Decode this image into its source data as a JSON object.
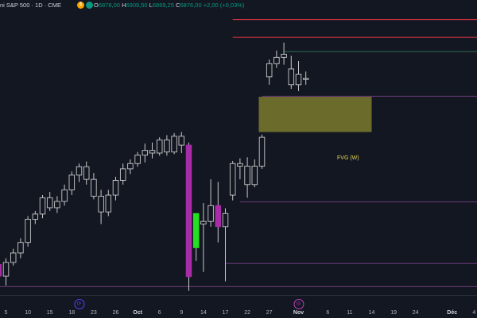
{
  "header": {
    "symbol_title": "ni S&P 500 · 1D · CME",
    "badge_currency": "$",
    "badge_delay": "D",
    "ohlc_open_label": "O",
    "ohlc_open": "6878,00",
    "ohlc_high_label": "H",
    "ohlc_high": "6909,50",
    "ohlc_low_label": "L",
    "ohlc_low": "6869,25",
    "ohlc_close_label": "C",
    "ohlc_close": "6876,00",
    "ohlc_change": "+2,00 (+0,03%)"
  },
  "annotations": {
    "fvg_label": "FVG (W)"
  },
  "events": [
    {
      "icon": "calendar-event-icon",
      "glyph": "⟳",
      "date": "Sep 19"
    },
    {
      "icon": "earnings-event-icon",
      "glyph": "⊙",
      "date": "Oct 31"
    }
  ],
  "colors": {
    "background": "#131722",
    "candle_outline": "#c8c8c8",
    "highlight_bear": "#a82ca8",
    "highlight_bull": "#22e022",
    "fvg_fill": "#8a8a30",
    "resistance_line": "#f23645",
    "level_line": "#6a3a78"
  },
  "chart_data": {
    "type": "candlestick",
    "instrument": "ni S&P 500",
    "timeframe": "1D",
    "exchange": "CME",
    "x_ticks": [
      {
        "label": "5",
        "date": "Sep 5"
      },
      {
        "label": "10",
        "date": "Sep 10"
      },
      {
        "label": "15",
        "date": "Sep 15"
      },
      {
        "label": "18",
        "date": "Sep 18"
      },
      {
        "label": "23",
        "date": "Sep 23"
      },
      {
        "label": "26",
        "date": "Sep 26"
      },
      {
        "label": "Oct",
        "date": "Oct 1",
        "bold": true
      },
      {
        "label": "6",
        "date": "Oct 6"
      },
      {
        "label": "9",
        "date": "Oct 9"
      },
      {
        "label": "14",
        "date": "Oct 14"
      },
      {
        "label": "17",
        "date": "Oct 17"
      },
      {
        "label": "22",
        "date": "Oct 22"
      },
      {
        "label": "27",
        "date": "Oct 27"
      },
      {
        "label": "Nov",
        "date": "Nov 1",
        "bold": true
      },
      {
        "label": "6",
        "date": "Nov 6"
      },
      {
        "label": "11",
        "date": "Nov 11"
      },
      {
        "label": "14",
        "date": "Nov 14"
      },
      {
        "label": "19",
        "date": "Nov 19"
      },
      {
        "label": "24",
        "date": "Nov 24"
      },
      {
        "label": "Déc",
        "date": "Dec 1",
        "bold": true
      },
      {
        "label": "4",
        "date": "Dec 4"
      }
    ],
    "y_range": [
      6440,
      6980
    ],
    "candles": [
      {
        "date": "Sep 3",
        "o": 6480,
        "h": 6505,
        "l": 6456,
        "c": 6498
      },
      {
        "date": "Sep 4",
        "o": 6498,
        "h": 6508,
        "l": 6470,
        "c": 6476,
        "highlight": "bear"
      },
      {
        "date": "Sep 5",
        "o": 6476,
        "h": 6510,
        "l": 6458,
        "c": 6502
      },
      {
        "date": "Sep 8",
        "o": 6502,
        "h": 6528,
        "l": 6496,
        "c": 6520
      },
      {
        "date": "Sep 9",
        "o": 6520,
        "h": 6548,
        "l": 6510,
        "c": 6540
      },
      {
        "date": "Sep 10",
        "o": 6540,
        "h": 6590,
        "l": 6532,
        "c": 6584
      },
      {
        "date": "Sep 11",
        "o": 6584,
        "h": 6600,
        "l": 6575,
        "c": 6594
      },
      {
        "date": "Sep 12",
        "o": 6594,
        "h": 6630,
        "l": 6586,
        "c": 6625
      },
      {
        "date": "Sep 15",
        "o": 6625,
        "h": 6636,
        "l": 6600,
        "c": 6606
      },
      {
        "date": "Sep 16",
        "o": 6606,
        "h": 6628,
        "l": 6596,
        "c": 6618
      },
      {
        "date": "Sep 17",
        "o": 6618,
        "h": 6650,
        "l": 6610,
        "c": 6640
      },
      {
        "date": "Sep 18",
        "o": 6640,
        "h": 6675,
        "l": 6630,
        "c": 6668
      },
      {
        "date": "Sep 19",
        "o": 6668,
        "h": 6690,
        "l": 6655,
        "c": 6684
      },
      {
        "date": "Sep 22",
        "o": 6684,
        "h": 6694,
        "l": 6650,
        "c": 6660
      },
      {
        "date": "Sep 23",
        "o": 6660,
        "h": 6672,
        "l": 6622,
        "c": 6628
      },
      {
        "date": "Sep 24",
        "o": 6628,
        "h": 6640,
        "l": 6575,
        "c": 6598
      },
      {
        "date": "Sep 25",
        "o": 6598,
        "h": 6640,
        "l": 6590,
        "c": 6630
      },
      {
        "date": "Sep 26",
        "o": 6630,
        "h": 6665,
        "l": 6620,
        "c": 6658
      },
      {
        "date": "Sep 29",
        "o": 6658,
        "h": 6690,
        "l": 6650,
        "c": 6680
      },
      {
        "date": "Sep 30",
        "o": 6680,
        "h": 6698,
        "l": 6670,
        "c": 6690
      },
      {
        "date": "Oct 1",
        "o": 6690,
        "h": 6712,
        "l": 6684,
        "c": 6706
      },
      {
        "date": "Oct 2",
        "o": 6706,
        "h": 6728,
        "l": 6692,
        "c": 6715
      },
      {
        "date": "Oct 3",
        "o": 6715,
        "h": 6730,
        "l": 6700,
        "c": 6710
      },
      {
        "date": "Oct 6",
        "o": 6710,
        "h": 6740,
        "l": 6705,
        "c": 6735
      },
      {
        "date": "Oct 7",
        "o": 6735,
        "h": 6744,
        "l": 6705,
        "c": 6712
      },
      {
        "date": "Oct 8",
        "o": 6712,
        "h": 6748,
        "l": 6708,
        "c": 6742
      },
      {
        "date": "Oct 9",
        "o": 6742,
        "h": 6750,
        "l": 6710,
        "c": 6725
      },
      {
        "date": "Oct 10",
        "o": 6725,
        "h": 6730,
        "l": 6448,
        "c": 6475,
        "highlight": "bear"
      },
      {
        "date": "Oct 13",
        "o": 6530,
        "h": 6590,
        "l": 6505,
        "c": 6595,
        "highlight": "bull"
      },
      {
        "date": "Oct 14",
        "o": 6575,
        "h": 6615,
        "l": 6484,
        "c": 6580
      },
      {
        "date": "Oct 15",
        "o": 6580,
        "h": 6660,
        "l": 6570,
        "c": 6610
      },
      {
        "date": "Oct 16",
        "o": 6610,
        "h": 6655,
        "l": 6540,
        "c": 6570,
        "highlight": "bear"
      },
      {
        "date": "Oct 17",
        "o": 6570,
        "h": 6605,
        "l": 6466,
        "c": 6595
      },
      {
        "date": "Oct 20",
        "o": 6630,
        "h": 6695,
        "l": 6620,
        "c": 6690
      },
      {
        "date": "Oct 21",
        "o": 6690,
        "h": 6700,
        "l": 6660,
        "c": 6685
      },
      {
        "date": "Oct 22",
        "o": 6685,
        "h": 6702,
        "l": 6625,
        "c": 6650
      },
      {
        "date": "Oct 23",
        "o": 6650,
        "h": 6698,
        "l": 6645,
        "c": 6685
      },
      {
        "date": "Oct 24",
        "o": 6685,
        "h": 6745,
        "l": 6680,
        "c": 6740
      },
      {
        "date": "Oct 27",
        "o": 6855,
        "h": 6888,
        "l": 6840,
        "c": 6880
      },
      {
        "date": "Oct 28",
        "o": 6880,
        "h": 6905,
        "l": 6872,
        "c": 6892
      },
      {
        "date": "Oct 29",
        "o": 6892,
        "h": 6920,
        "l": 6878,
        "c": 6898
      },
      {
        "date": "Oct 30",
        "o": 6870,
        "h": 6895,
        "l": 6832,
        "c": 6840
      },
      {
        "date": "Oct 31",
        "o": 6840,
        "h": 6885,
        "l": 6828,
        "c": 6860
      },
      {
        "date": "Nov 3",
        "o": 6850,
        "h": 6865,
        "l": 6840,
        "c": 6852
      }
    ],
    "horizontal_lines": [
      {
        "price": 6964,
        "from": "Oct 20",
        "to": "Dec 6",
        "style": "resistance"
      },
      {
        "price": 6930,
        "from": "Oct 20",
        "to": "Dec 6",
        "style": "resistance"
      },
      {
        "price": 6903,
        "from": "Oct 29",
        "to": "Dec 6",
        "style": "level_green"
      },
      {
        "price": 6818,
        "from": "Oct 24",
        "to": "Dec 6",
        "style": "level"
      },
      {
        "price": 6617,
        "from": "Oct 21",
        "to": "Dec 6",
        "style": "level"
      },
      {
        "price": 6500,
        "from": "Oct 17",
        "to": "Dec 6",
        "style": "level"
      },
      {
        "price": 6456,
        "from": "Sep 3",
        "to": "Dec 6",
        "style": "level"
      }
    ],
    "zones": [
      {
        "label": "FVG (W)",
        "top": 6817,
        "bottom": 6750,
        "from": "Oct 24",
        "to": "Nov 14"
      }
    ],
    "grid": false,
    "legend": "none"
  }
}
